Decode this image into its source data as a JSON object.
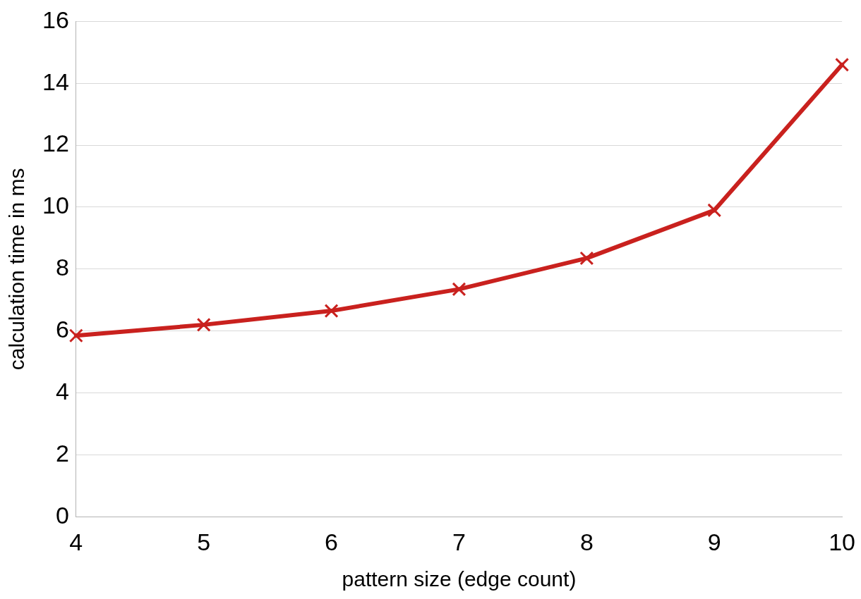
{
  "chart_data": {
    "type": "line",
    "xlabel": "pattern size (edge count)",
    "ylabel": "calculation time in ms",
    "x": [
      4,
      5,
      6,
      7,
      8,
      9,
      10
    ],
    "series": [
      {
        "color": "#c9211e",
        "values": [
          5.85,
          6.2,
          6.65,
          7.35,
          8.35,
          9.9,
          14.6
        ]
      }
    ],
    "xlim": [
      4,
      10
    ],
    "xticks": [
      4,
      5,
      6,
      7,
      8,
      9,
      10
    ],
    "ylim": [
      0,
      16
    ],
    "yticks": [
      0,
      2,
      4,
      6,
      8,
      10,
      12,
      14,
      16
    ],
    "grid": "y",
    "legend": false,
    "marker": "cross",
    "line_style": "solid"
  }
}
